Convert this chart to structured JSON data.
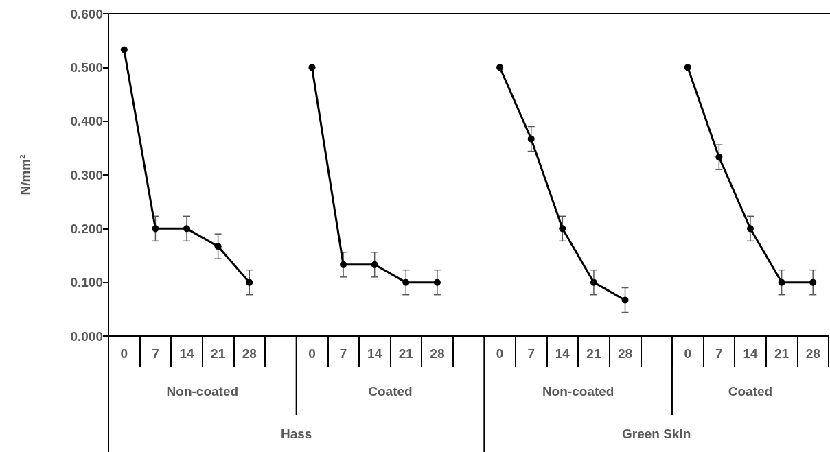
{
  "chart_data": {
    "type": "line",
    "ylabel": "N/mm²",
    "categories": [
      "0",
      "7",
      "14",
      "21",
      "28",
      null,
      "0",
      "7",
      "14",
      "21",
      "28",
      null,
      "0",
      "7",
      "14",
      "21",
      "28",
      null,
      "0",
      "7",
      "14",
      "21",
      "28"
    ],
    "series": [
      {
        "color": "#000000",
        "values": [
          0.533,
          0.2,
          0.2,
          0.167,
          0.1,
          null,
          0.5,
          0.133,
          0.133,
          0.1,
          0.1,
          null,
          0.5,
          0.367,
          0.2,
          0.1,
          0.067,
          null,
          0.5,
          0.333,
          0.2,
          0.1,
          0.1
        ],
        "errors": [
          null,
          0.023,
          0.023,
          0.023,
          0.023,
          null,
          null,
          0.023,
          0.023,
          0.023,
          0.023,
          null,
          null,
          0.023,
          0.023,
          0.023,
          0.023,
          null,
          null,
          0.023,
          0.023,
          0.023,
          0.023
        ]
      }
    ],
    "ylim": [
      0,
      0.6
    ],
    "yticks": [
      {
        "value": 0,
        "label": "0.000"
      },
      {
        "value": 0.1,
        "label": "0.100"
      },
      {
        "value": 0.2,
        "label": "0.200"
      },
      {
        "value": 0.3,
        "label": "0.300"
      },
      {
        "value": 0.4,
        "label": "0.400"
      },
      {
        "value": 0.5,
        "label": "0.500"
      },
      {
        "value": 0.6,
        "label": "0.600"
      }
    ],
    "annotations": [
      "Non-coated",
      "Coated",
      "Non-coated",
      "Coated",
      "Hass",
      "Green Skin"
    ],
    "marker": "circle",
    "line_style": "solid",
    "grid": false
  }
}
